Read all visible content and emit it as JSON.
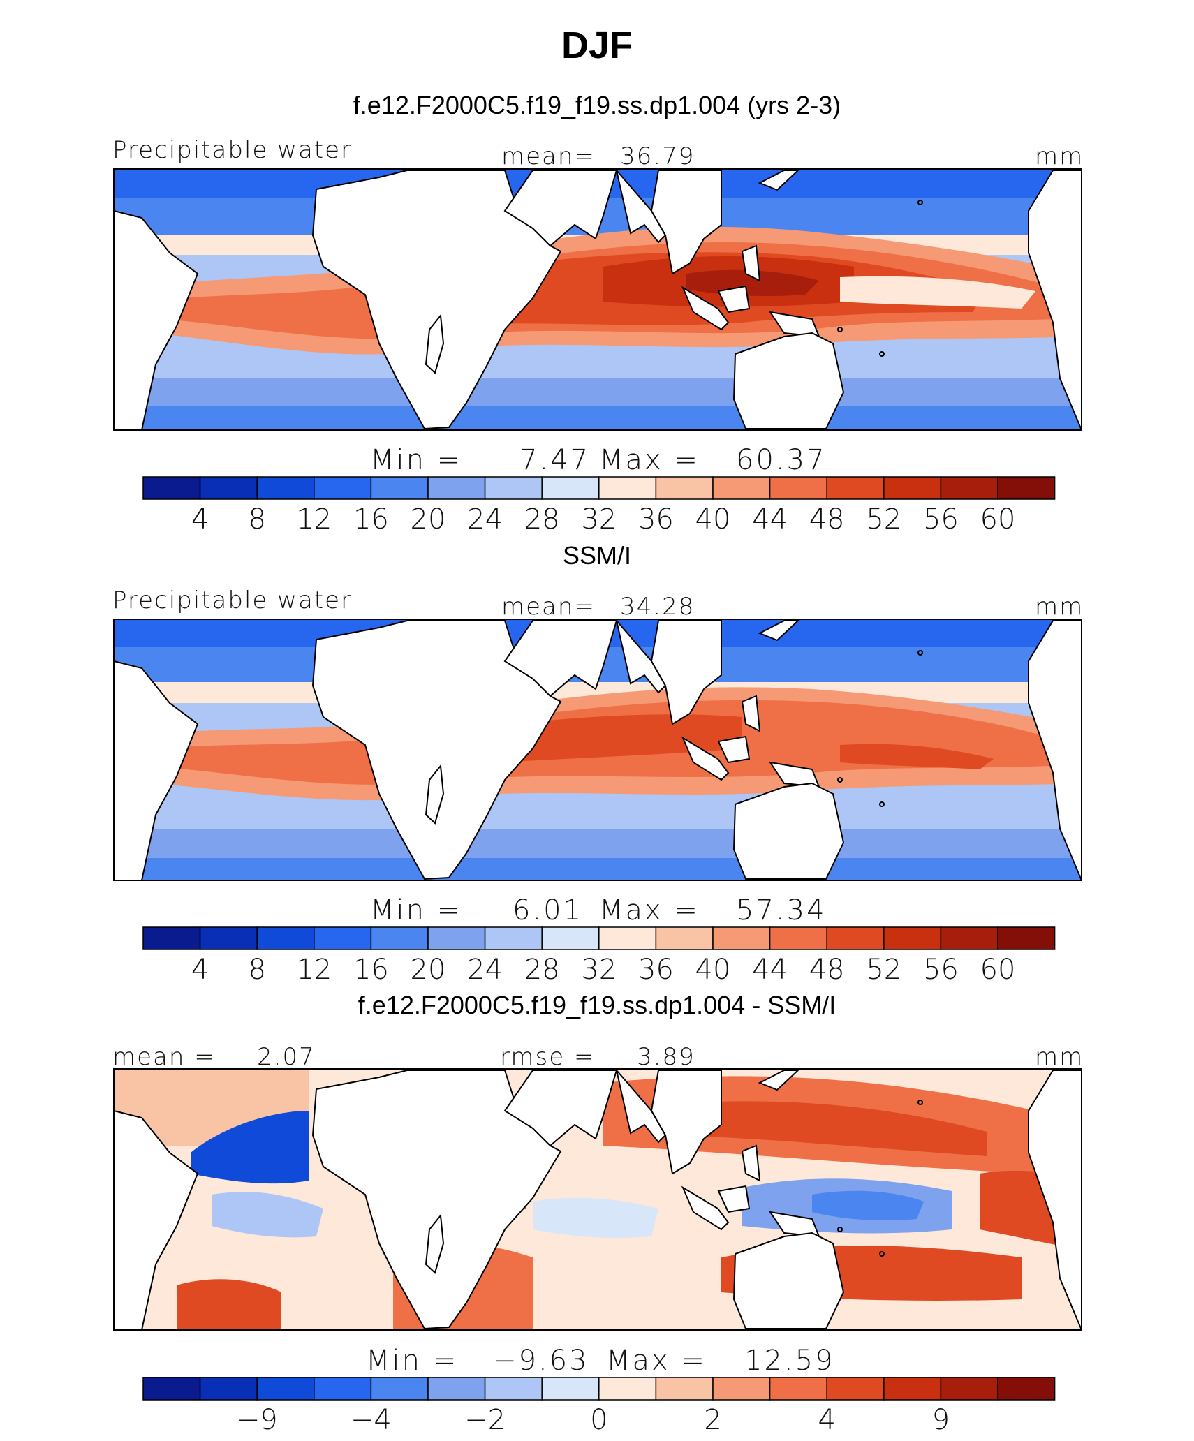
{
  "title": "DJF",
  "palette": [
    "#0a1a8f",
    "#0a2fb7",
    "#0f4ad8",
    "#2766ee",
    "#4b85ef",
    "#7ea2ee",
    "#aec6f5",
    "#d8e6fa",
    "#fde8d9",
    "#f9c3a6",
    "#f59a74",
    "#ef7046",
    "#e04a22",
    "#c8300f",
    "#a71e0c",
    "#840f08"
  ],
  "chart_data": [
    {
      "type": "heatmap",
      "panel_title": "f.e12.F2000C5.f19_f19.ss.dp1.004 (yrs 2-3)",
      "variable": "Precipitable water",
      "mean_label": "mean=",
      "mean_value": "36.79",
      "units": "mm",
      "min_label": "Min =",
      "min_value": "7.47",
      "max_label": "Max =",
      "max_value": "60.37",
      "colorbar_ticks": [
        "4",
        "8",
        "12",
        "16",
        "20",
        "24",
        "28",
        "32",
        "36",
        "40",
        "44",
        "48",
        "52",
        "56",
        "60"
      ]
    },
    {
      "type": "heatmap",
      "panel_title": "SSM/I",
      "variable": "Precipitable water",
      "mean_label": "mean=",
      "mean_value": "34.28",
      "units": "mm",
      "min_label": "Min =",
      "min_value": "6.01",
      "max_label": "Max =",
      "max_value": "57.34",
      "colorbar_ticks": [
        "4",
        "8",
        "12",
        "16",
        "20",
        "24",
        "28",
        "32",
        "36",
        "40",
        "44",
        "48",
        "52",
        "56",
        "60"
      ]
    },
    {
      "type": "heatmap",
      "panel_title": "f.e12.F2000C5.f19_f19.ss.dp1.004 - SSM/I",
      "mean_label": "mean =",
      "mean_value": "2.07",
      "rmse_label": "rmse =",
      "rmse_value": "3.89",
      "units": "mm",
      "min_label": "Min =",
      "min_value": "−9.63",
      "max_label": "Max =",
      "max_value": "12.59",
      "colorbar_ticks": [
        "−9",
        "−4",
        "−2",
        "0",
        "2",
        "4",
        "9"
      ]
    }
  ]
}
